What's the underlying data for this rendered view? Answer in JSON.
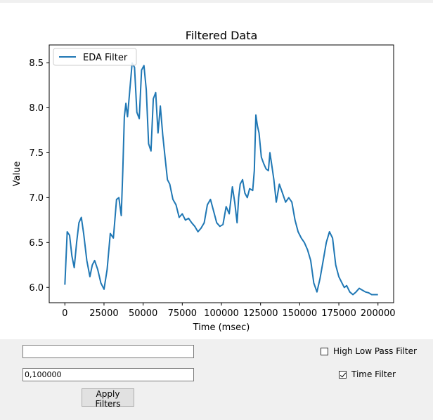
{
  "chart_data": {
    "type": "line",
    "title": "Filtered Data",
    "xlabel": "Time (msec)",
    "ylabel": "Value",
    "xlim": [
      -10000,
      210000
    ],
    "ylim": [
      5.83,
      8.7
    ],
    "xticks": [
      0,
      25000,
      50000,
      75000,
      100000,
      125000,
      150000,
      175000,
      200000
    ],
    "yticks": [
      6.0,
      6.5,
      7.0,
      7.5,
      8.0,
      8.5
    ],
    "grid": false,
    "legend_position": "top-left",
    "series": [
      {
        "name": "EDA Filter",
        "color": "#1f77b4",
        "x": [
          0,
          1500,
          3000,
          4500,
          6000,
          7500,
          9000,
          10500,
          12000,
          14000,
          16000,
          17500,
          19000,
          21000,
          23000,
          25000,
          27000,
          29000,
          31000,
          33000,
          34500,
          36000,
          37000,
          38000,
          39000,
          40000,
          41500,
          43000,
          44500,
          46000,
          47500,
          49000,
          50500,
          52000,
          53500,
          55000,
          56500,
          58000,
          59500,
          61000,
          62500,
          64000,
          65500,
          67000,
          69000,
          71000,
          73000,
          75000,
          77000,
          79000,
          81000,
          83000,
          85000,
          87000,
          89000,
          91000,
          93000,
          95000,
          97000,
          99000,
          101000,
          103000,
          105000,
          107000,
          108500,
          110000,
          111000,
          112000,
          113500,
          115000,
          116500,
          118000,
          120000,
          121000,
          122000,
          123000,
          124000,
          125500,
          127000,
          128500,
          130000,
          131000,
          132000,
          133500,
          135000,
          137000,
          139000,
          141000,
          143000,
          145000,
          147000,
          149000,
          151000,
          153000,
          155000,
          157000,
          159000,
          161000,
          163000,
          165000,
          167000,
          169000,
          171000,
          173000,
          175000,
          177000,
          178500,
          180000,
          182000,
          184000,
          186000,
          188000,
          190000,
          192000,
          194000,
          196000,
          198000,
          200000
        ],
        "values": [
          6.03,
          6.62,
          6.58,
          6.35,
          6.22,
          6.5,
          6.72,
          6.78,
          6.6,
          6.3,
          6.12,
          6.25,
          6.3,
          6.2,
          6.05,
          5.98,
          6.2,
          6.6,
          6.55,
          6.98,
          7.0,
          6.8,
          7.3,
          7.9,
          8.05,
          7.9,
          8.2,
          8.5,
          8.45,
          7.95,
          7.88,
          8.42,
          8.47,
          8.2,
          7.6,
          7.52,
          8.1,
          8.17,
          7.72,
          8.02,
          7.7,
          7.45,
          7.2,
          7.15,
          6.98,
          6.92,
          6.78,
          6.82,
          6.75,
          6.77,
          6.72,
          6.68,
          6.62,
          6.66,
          6.72,
          6.92,
          6.98,
          6.85,
          6.72,
          6.68,
          6.7,
          6.9,
          6.82,
          7.12,
          6.95,
          6.72,
          7.0,
          7.15,
          7.2,
          7.05,
          7.0,
          7.1,
          7.08,
          7.3,
          7.92,
          7.8,
          7.72,
          7.45,
          7.38,
          7.32,
          7.3,
          7.5,
          7.38,
          7.2,
          6.95,
          7.15,
          7.05,
          6.95,
          7.0,
          6.95,
          6.75,
          6.62,
          6.55,
          6.5,
          6.42,
          6.3,
          6.05,
          5.95,
          6.1,
          6.3,
          6.5,
          6.62,
          6.55,
          6.25,
          6.12,
          6.05,
          6.0,
          6.02,
          5.95,
          5.92,
          5.95,
          5.99,
          5.97,
          5.95,
          5.94,
          5.92,
          5.92,
          5.92
        ],
        "comment_unused": ""
      }
    ]
  },
  "controls": {
    "filter_input_1": "",
    "filter_input_2": "0,100000",
    "high_low_pass_label": "High Low Pass Filter",
    "high_low_pass_checked": false,
    "time_filter_label": "Time Filter",
    "time_filter_checked": true,
    "apply_button_label": "Apply Filters"
  }
}
